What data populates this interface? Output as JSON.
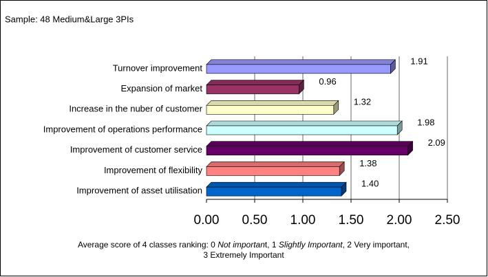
{
  "chart_data": {
    "type": "bar3d",
    "orientation": "horizontal",
    "title": "Sample: 48 Medium&Large 3PIs",
    "categories": [
      "Turnover improvement",
      "Expansion of market",
      "Increase in the nuber of customer",
      "Improvement of operations performance",
      "Improvement of customer service",
      "Improvement of  flexibility",
      "Improvement of asset utilisation"
    ],
    "values": [
      1.91,
      0.96,
      1.32,
      1.98,
      2.09,
      1.38,
      1.4
    ],
    "value_labels": [
      "1.91",
      "0.96",
      "1.32",
      "1.98",
      "2.09",
      "1.38",
      "1.40"
    ],
    "colors": [
      "#9999ff",
      "#993366",
      "#ffffcc",
      "#ccffff",
      "#660066",
      "#ff8080",
      "#0066cc"
    ],
    "xlim": [
      0,
      2.5
    ],
    "xticks": [
      {
        "value": 0,
        "label": "0.00"
      },
      {
        "value": 0.5,
        "label": "0.50"
      },
      {
        "value": 1,
        "label": "1.00"
      },
      {
        "value": 1.5,
        "label": "1.50"
      },
      {
        "value": 2,
        "label": "2.00"
      },
      {
        "value": 2.5,
        "label": "2.50"
      }
    ],
    "grid": true,
    "note_lines": [
      [
        {
          "text": "Average score of 4 classes ranking: 0 ",
          "italic": false
        },
        {
          "text": "Not importan",
          "italic": true
        },
        {
          "text": "t, 1 ",
          "italic": false
        },
        {
          "text": "Slightly Important",
          "italic": true
        },
        {
          "text": ", 2 Very important,",
          "italic": false
        }
      ],
      [
        {
          "text": "3 Extremely Important",
          "italic": false
        }
      ]
    ]
  }
}
